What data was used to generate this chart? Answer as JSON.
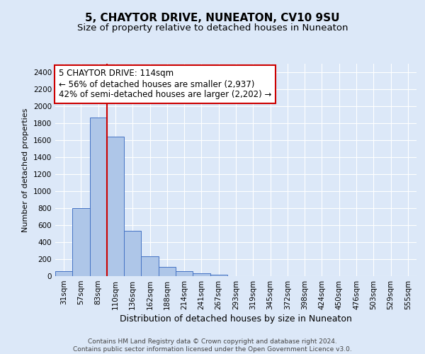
{
  "title": "5, CHAYTOR DRIVE, NUNEATON, CV10 9SU",
  "subtitle": "Size of property relative to detached houses in Nuneaton",
  "xlabel": "Distribution of detached houses by size in Nuneaton",
  "ylabel": "Number of detached properties",
  "categories": [
    "31sqm",
    "57sqm",
    "83sqm",
    "110sqm",
    "136sqm",
    "162sqm",
    "188sqm",
    "214sqm",
    "241sqm",
    "267sqm",
    "293sqm",
    "319sqm",
    "345sqm",
    "372sqm",
    "398sqm",
    "424sqm",
    "450sqm",
    "476sqm",
    "503sqm",
    "529sqm",
    "555sqm"
  ],
  "values": [
    55,
    800,
    1870,
    1640,
    530,
    235,
    110,
    55,
    30,
    20,
    0,
    0,
    0,
    0,
    0,
    0,
    0,
    0,
    0,
    0,
    0
  ],
  "bar_color": "#aec6e8",
  "bar_edge_color": "#4472c4",
  "vline_index": 3,
  "vline_color": "#cc0000",
  "annotation_line1": "5 CHAYTOR DRIVE: 114sqm",
  "annotation_line2": "← 56% of detached houses are smaller (2,937)",
  "annotation_line3": "42% of semi-detached houses are larger (2,202) →",
  "annotation_box_color": "#ffffff",
  "annotation_box_edge_color": "#cc0000",
  "ylim": [
    0,
    2500
  ],
  "yticks": [
    0,
    200,
    400,
    600,
    800,
    1000,
    1200,
    1400,
    1600,
    1800,
    2000,
    2200,
    2400
  ],
  "background_color": "#dce8f8",
  "grid_color": "#ffffff",
  "footer_line1": "Contains HM Land Registry data © Crown copyright and database right 2024.",
  "footer_line2": "Contains public sector information licensed under the Open Government Licence v3.0.",
  "title_fontsize": 11,
  "subtitle_fontsize": 9.5,
  "xlabel_fontsize": 9,
  "ylabel_fontsize": 8,
  "tick_fontsize": 7.5,
  "annotation_fontsize": 8.5,
  "footer_fontsize": 6.5
}
